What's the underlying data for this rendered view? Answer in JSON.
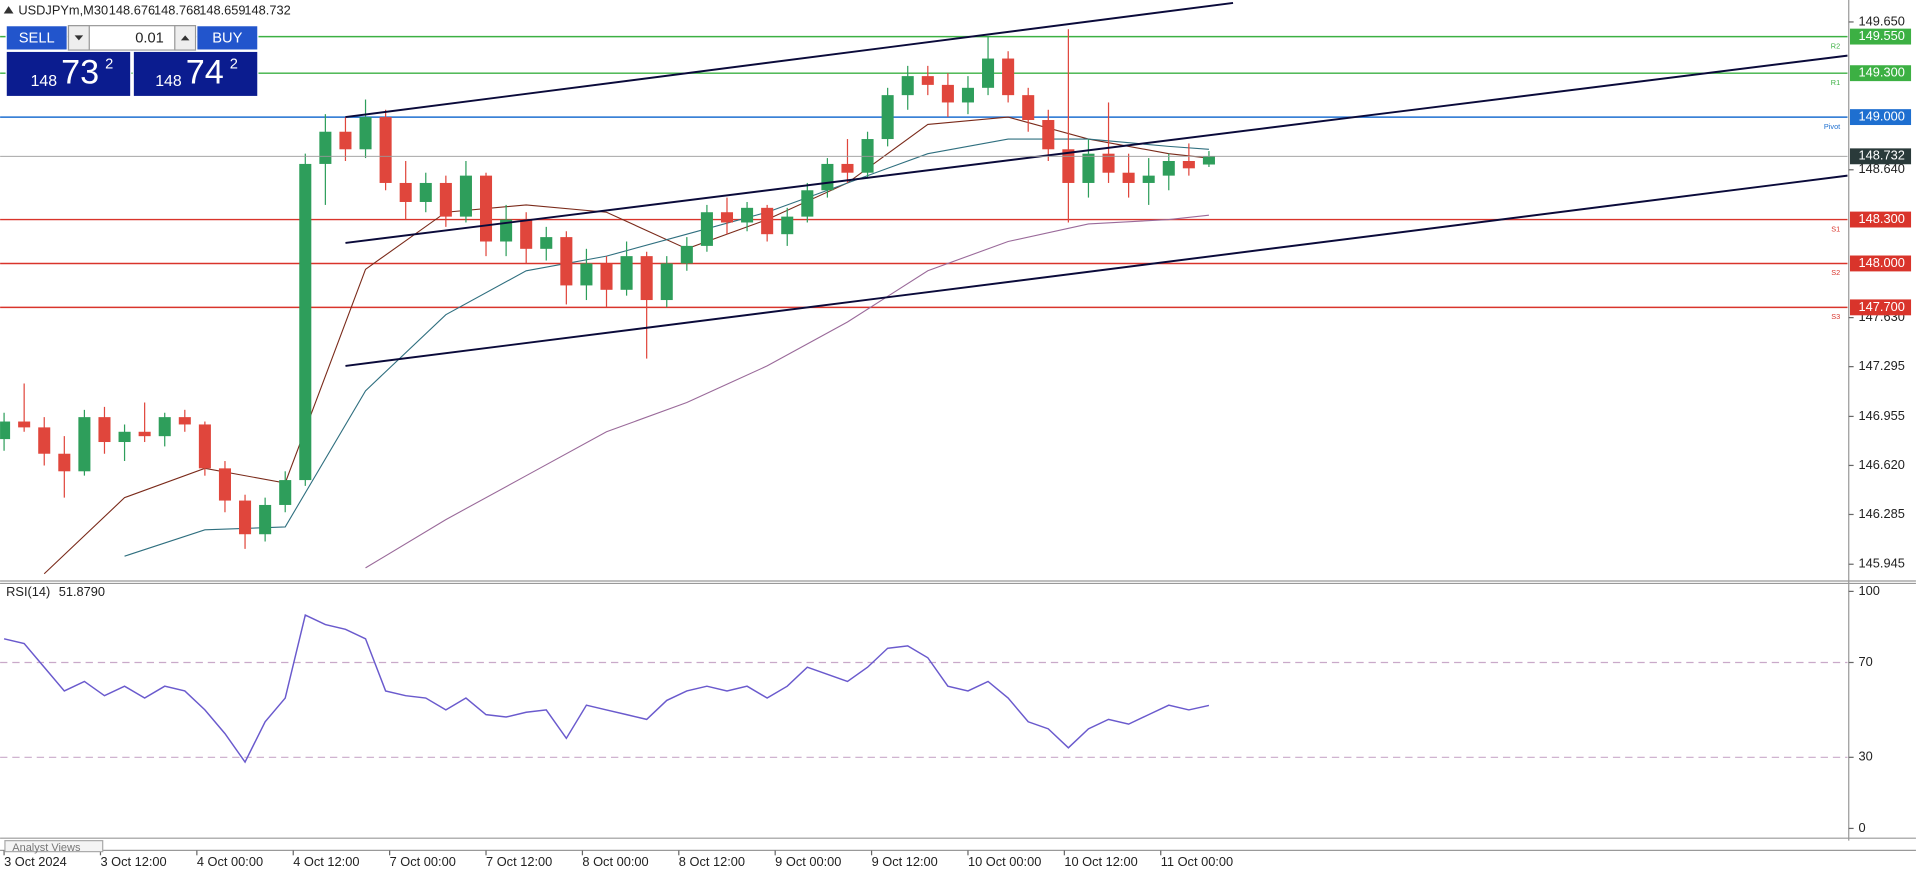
{
  "chart_data": [
    {
      "type": "candlestick",
      "title": "USDJPYm,M30",
      "x": [
        0,
        5,
        10,
        15,
        20,
        25,
        30,
        35,
        40,
        45,
        50,
        55,
        60,
        65,
        70,
        75,
        80,
        85,
        90,
        95,
        100,
        105,
        110,
        115,
        120,
        125,
        130,
        135,
        140,
        145,
        150,
        155,
        160,
        165,
        170,
        175,
        180,
        185,
        190,
        195,
        200,
        205,
        210,
        215,
        220,
        225,
        230,
        235,
        240,
        245,
        250,
        255,
        260,
        265,
        270,
        275,
        280,
        285,
        290,
        295,
        300
      ],
      "open": [
        146.8,
        146.92,
        146.88,
        146.7,
        146.58,
        146.95,
        146.78,
        146.85,
        146.82,
        146.95,
        146.9,
        146.6,
        146.38,
        146.15,
        146.35,
        146.52,
        148.68,
        148.9,
        148.78,
        149.0,
        148.55,
        148.42,
        148.55,
        148.32,
        148.6,
        148.15,
        148.3,
        148.1,
        148.18,
        147.85,
        148.0,
        147.82,
        148.05,
        147.75,
        148.0,
        148.12,
        148.35,
        148.28,
        148.38,
        148.2,
        148.32,
        148.5,
        148.68,
        148.62,
        148.85,
        149.15,
        149.28,
        149.22,
        149.1,
        149.2,
        149.4,
        149.15,
        148.98,
        148.78,
        148.55,
        148.75,
        148.62,
        148.55,
        148.6,
        148.7,
        148.676
      ],
      "high": [
        146.98,
        147.18,
        146.95,
        146.82,
        147.0,
        147.02,
        146.9,
        147.05,
        146.98,
        147.0,
        146.92,
        146.65,
        146.42,
        146.4,
        146.58,
        148.75,
        149.02,
        149.0,
        149.12,
        149.05,
        148.7,
        148.62,
        148.6,
        148.7,
        148.62,
        148.4,
        148.35,
        148.25,
        148.22,
        148.1,
        148.05,
        148.15,
        148.08,
        148.05,
        148.18,
        148.4,
        148.45,
        148.42,
        148.4,
        148.38,
        148.55,
        148.72,
        148.85,
        148.9,
        149.2,
        149.35,
        149.35,
        149.3,
        149.28,
        149.55,
        149.45,
        149.2,
        149.05,
        149.6,
        148.85,
        149.1,
        148.75,
        148.72,
        148.75,
        148.82,
        148.768
      ],
      "low": [
        146.72,
        146.85,
        146.62,
        146.4,
        146.55,
        146.7,
        146.65,
        146.78,
        146.75,
        146.85,
        146.55,
        146.3,
        146.05,
        146.1,
        146.3,
        146.48,
        148.4,
        148.7,
        148.72,
        148.5,
        148.3,
        148.35,
        148.25,
        148.28,
        148.05,
        148.05,
        148.0,
        148.02,
        147.72,
        147.75,
        147.7,
        147.78,
        147.35,
        147.7,
        147.95,
        148.08,
        148.2,
        148.22,
        148.15,
        148.12,
        148.28,
        148.45,
        148.55,
        148.58,
        148.8,
        149.05,
        149.15,
        149.0,
        149.02,
        149.15,
        149.1,
        148.9,
        148.7,
        148.28,
        148.45,
        148.55,
        148.45,
        148.4,
        148.5,
        148.6,
        148.659
      ],
      "close": [
        146.92,
        146.88,
        146.7,
        146.58,
        146.95,
        146.78,
        146.85,
        146.82,
        146.95,
        146.9,
        146.6,
        146.38,
        146.15,
        146.35,
        146.52,
        148.68,
        148.9,
        148.78,
        149.0,
        148.55,
        148.42,
        148.55,
        148.32,
        148.6,
        148.15,
        148.3,
        148.1,
        148.18,
        147.85,
        148.0,
        147.82,
        148.05,
        147.75,
        148.0,
        148.12,
        148.35,
        148.28,
        148.38,
        148.2,
        148.32,
        148.5,
        148.68,
        148.62,
        148.85,
        149.15,
        149.28,
        149.22,
        149.1,
        149.2,
        149.4,
        149.15,
        148.98,
        148.78,
        148.55,
        148.75,
        148.62,
        148.55,
        148.6,
        148.7,
        148.65,
        148.732
      ],
      "up_color": "#2e9e5b",
      "down_color": "#e0463c",
      "moving_averages": [
        {
          "color": "#7a2a1a",
          "x": [
            10,
            30,
            50,
            70,
            90,
            110,
            130,
            150,
            170,
            190,
            210,
            230,
            250,
            270,
            290,
            300
          ],
          "values": [
            145.88,
            146.4,
            146.6,
            146.5,
            147.96,
            148.35,
            148.4,
            148.35,
            148.1,
            148.3,
            148.55,
            148.95,
            149.0,
            148.85,
            148.75,
            148.72
          ]
        },
        {
          "color": "#2f6f7f",
          "x": [
            10,
            30,
            50,
            70,
            90,
            110,
            130,
            150,
            170,
            190,
            210,
            230,
            250,
            270,
            290,
            300
          ],
          "values": [
            null,
            146.0,
            146.18,
            146.2,
            147.13,
            147.65,
            147.95,
            148.05,
            148.2,
            148.35,
            148.55,
            148.75,
            148.85,
            148.85,
            148.8,
            148.78
          ]
        },
        {
          "color": "#9a6a9a",
          "x": [
            10,
            30,
            50,
            70,
            90,
            110,
            130,
            150,
            170,
            190,
            210,
            230,
            250,
            270,
            290,
            300
          ],
          "values": [
            null,
            null,
            null,
            null,
            145.92,
            146.25,
            146.55,
            146.85,
            147.05,
            147.3,
            147.6,
            147.95,
            148.15,
            148.27,
            148.3,
            148.33
          ]
        }
      ],
      "trendlines": [
        {
          "x": [
            85,
            306
          ],
          "y": [
            149.0,
            149.78
          ]
        },
        {
          "x": [
            85,
            459
          ],
          "y": [
            148.14,
            149.42
          ]
        },
        {
          "x": [
            85,
            459
          ],
          "y": [
            147.3,
            148.6
          ]
        }
      ],
      "levels": [
        {
          "name": "R2",
          "value": 149.55,
          "label": "149.550",
          "color": "#3cb043"
        },
        {
          "name": "R1",
          "value": 149.3,
          "label": "149.300",
          "color": "#3cb043"
        },
        {
          "name": "Pivot",
          "value": 149,
          "label": "149.000",
          "color": "#1e6fd0"
        },
        {
          "name": "S1",
          "value": 148.3,
          "label": "148.300",
          "color": "#d9342b"
        },
        {
          "name": "S2",
          "value": 148,
          "label": "148.000",
          "color": "#d9342b"
        },
        {
          "name": "S3",
          "value": 147.7,
          "label": "147.700",
          "color": "#d9342b"
        }
      ],
      "xlim": [
        -1,
        459
      ],
      "ylim": [
        145.843,
        149.8
      ],
      "yticks": [
        {
          "value": 149.65,
          "label": "149.650"
        },
        {
          "value": 148.64,
          "label": "148.640"
        },
        {
          "value": 147.63,
          "label": "147.630"
        },
        147.295,
        146.955,
        {
          "value": 146.62,
          "label": "146.620"
        },
        146.285,
        145.945
      ],
      "xticks": [
        {
          "value": 0,
          "label": "3 Oct 2024"
        },
        {
          "value": 24,
          "label": "3 Oct 12:00"
        },
        {
          "value": 48,
          "label": "4 Oct 00:00"
        },
        {
          "value": 72,
          "label": "4 Oct 12:00"
        },
        {
          "value": 96,
          "label": "7 Oct 00:00"
        },
        {
          "value": 120,
          "label": "7 Oct 12:00"
        },
        {
          "value": 144,
          "label": "8 Oct 00:00"
        },
        {
          "value": 168,
          "label": "8 Oct 12:00"
        },
        {
          "value": 192,
          "label": "9 Oct 00:00"
        },
        {
          "value": 216,
          "label": "9 Oct 12:00"
        },
        {
          "value": 240,
          "label": "10 Oct 00:00"
        },
        {
          "value": 264,
          "label": "10 Oct 12:00"
        },
        {
          "value": 288,
          "label": "11 Oct 00:00"
        }
      ]
    },
    {
      "type": "line",
      "title": "RSI(14)",
      "last_value_label": "51.8790",
      "color": "#6a5acd",
      "x": [
        0,
        5,
        10,
        15,
        20,
        25,
        30,
        35,
        40,
        45,
        50,
        55,
        60,
        65,
        70,
        75,
        80,
        85,
        90,
        95,
        100,
        105,
        110,
        115,
        120,
        125,
        130,
        135,
        140,
        145,
        150,
        155,
        160,
        165,
        170,
        175,
        180,
        185,
        190,
        195,
        200,
        205,
        210,
        215,
        220,
        225,
        230,
        235,
        240,
        245,
        250,
        255,
        260,
        265,
        270,
        275,
        280,
        285,
        290,
        295,
        300
      ],
      "values": [
        80,
        78,
        68,
        58,
        62,
        56,
        60,
        55,
        60,
        58,
        50,
        40,
        28,
        45,
        55,
        90,
        86,
        84,
        80,
        58,
        56,
        55,
        50,
        55,
        48,
        47,
        49,
        50,
        38,
        52,
        50,
        48,
        46,
        54,
        58,
        60,
        58,
        60,
        55,
        60,
        68,
        65,
        62,
        68,
        76,
        77,
        72,
        60,
        58,
        62,
        55,
        45,
        42,
        34,
        42,
        46,
        44,
        48,
        52,
        50,
        51.879
      ],
      "xlim": [
        -1,
        459
      ],
      "ylim": [
        0,
        100
      ],
      "yticks": [
        0,
        30,
        70,
        100
      ],
      "level_lines": [
        30,
        70
      ]
    }
  ],
  "trade_panel": {
    "sell": "SELL",
    "buy": "BUY",
    "lot": 0.01,
    "bid": {
      "big": "148",
      "pips": "73",
      "fraction": "2"
    },
    "ask": {
      "big": "148",
      "pips": "74",
      "fraction": "2"
    }
  },
  "tabs": [
    "Analyst Views"
  ]
}
